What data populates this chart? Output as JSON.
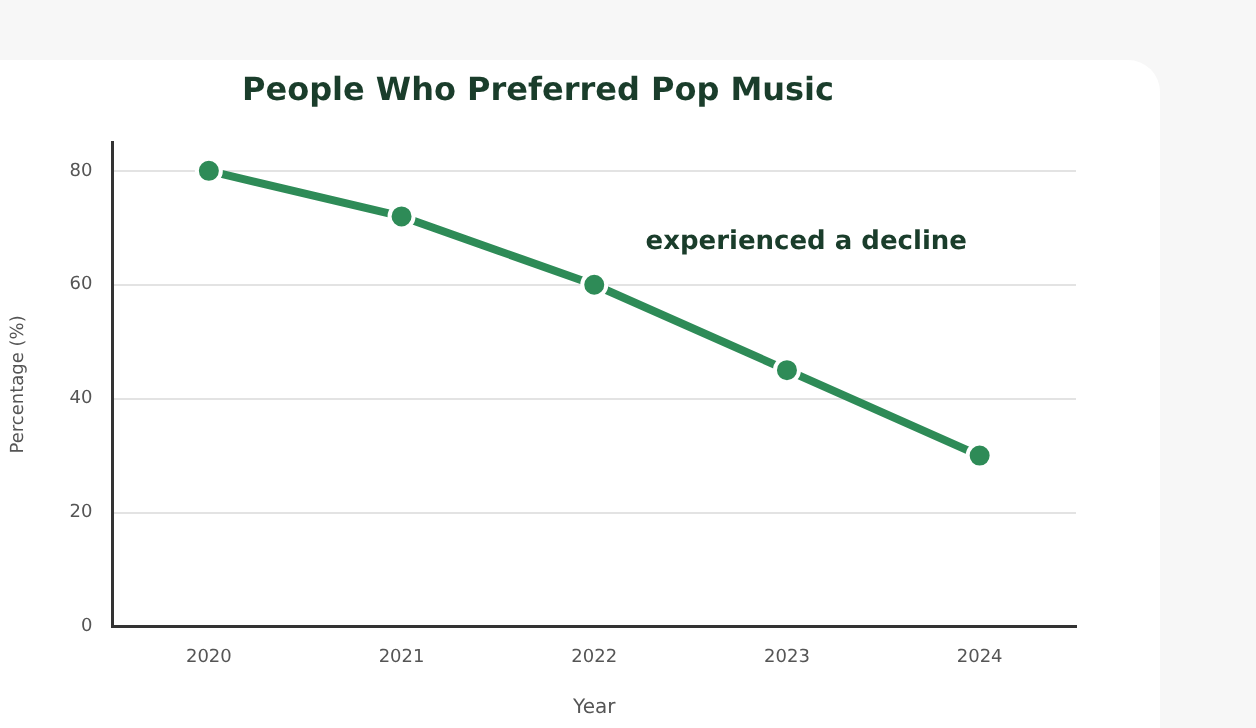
{
  "chart_data": {
    "type": "line",
    "title": "People Who Preferred Pop Music",
    "xlabel": "Year",
    "ylabel": "Percentage (%)",
    "categories": [
      "2020",
      "2021",
      "2022",
      "2023",
      "2024"
    ],
    "series": [
      {
        "color": "#2e8b57",
        "values": [
          80,
          72,
          60,
          45,
          30
        ]
      }
    ],
    "ylim": [
      0,
      85
    ],
    "yticks": [
      0,
      20,
      40,
      60,
      80
    ],
    "grid": "y",
    "legend": false,
    "marker": "circle",
    "line_style": "solid",
    "annotations": [
      "experienced a decline"
    ]
  }
}
